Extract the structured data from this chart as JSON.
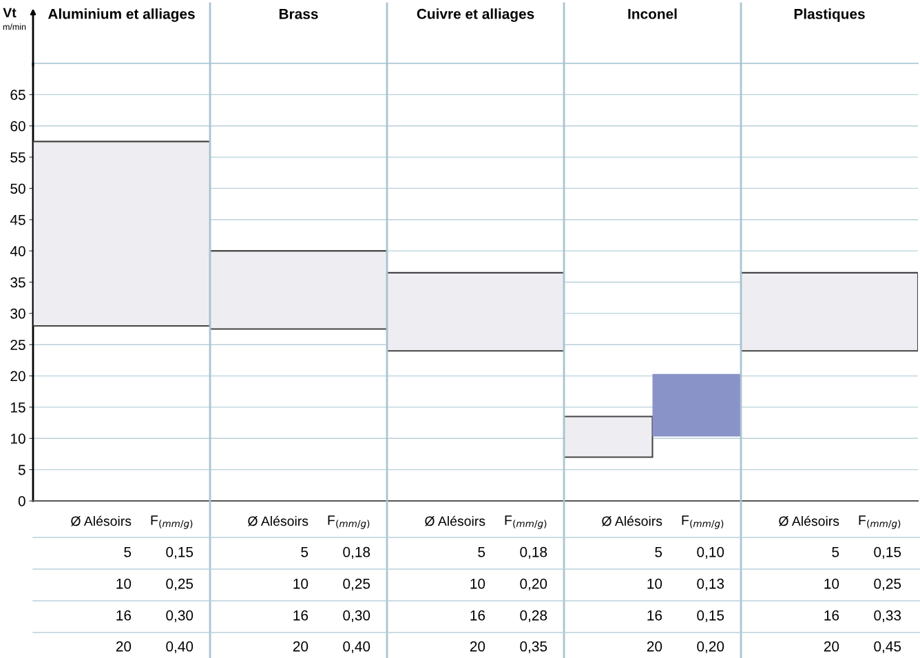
{
  "chart_data": {
    "type": "bar",
    "ylabel": "Vt",
    "categories": [
      "Aluminium et alliages",
      "Brass",
      "Cuivre et alliages",
      "Inconel",
      "Plastiques"
    ],
    "series": [
      {
        "color": "#eeeef2",
        "base": [
          28,
          27.5,
          24,
          7,
          24
        ],
        "values": [
          29.5,
          12.5,
          12.5,
          6.5,
          12.5
        ]
      },
      {
        "color": "#8a93c8",
        "base": [
          null,
          null,
          null,
          10.3,
          null
        ],
        "values": [
          null,
          null,
          null,
          10,
          null
        ]
      }
    ],
    "ylim": [
      0,
      70
    ],
    "yticks": [
      0,
      5,
      10,
      15,
      20,
      25,
      30,
      35,
      40,
      45,
      50,
      55,
      60,
      65
    ],
    "grid": "y",
    "annotations": [
      "m/min",
      "Ø Alésoirs",
      "F$_{(mm/g)}$",
      "5",
      "0,15",
      "10",
      "0,25",
      "16",
      "0,30",
      "20",
      "0,40",
      "Ø Alésoirs",
      "F$_{(mm/g)}$",
      "5",
      "0,18",
      "10",
      "0,25",
      "16",
      "0,30",
      "20",
      "0,40",
      "Ø Alésoirs",
      "F$_{(mm/g)}$",
      "5",
      "0,18",
      "10",
      "0,20",
      "16",
      "0,28",
      "20",
      "0,35",
      "Ø Alésoirs",
      "F$_{(mm/g)}$",
      "5",
      "0,10",
      "10",
      "0,13",
      "16",
      "0,15",
      "20",
      "0,20",
      "Ø Alésoirs",
      "F$_{(mm/g)}$",
      "5",
      "0,15",
      "10",
      "0,25",
      "16",
      "0,33",
      "20",
      "0,45"
    ]
  }
}
